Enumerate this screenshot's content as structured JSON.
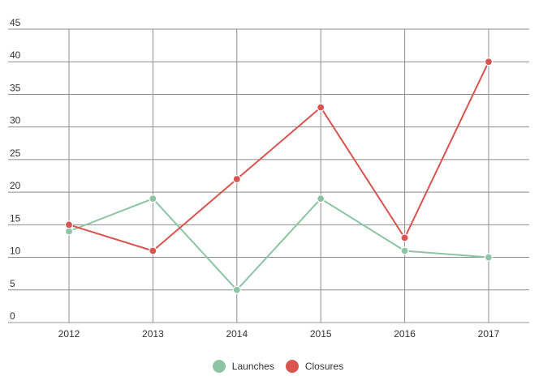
{
  "chart_data": {
    "type": "line",
    "categories": [
      "2012",
      "2013",
      "2014",
      "2015",
      "2016",
      "2017"
    ],
    "ylim": [
      0,
      45
    ],
    "yticks": [
      0,
      5,
      10,
      15,
      20,
      25,
      30,
      35,
      40,
      45
    ],
    "grid": true,
    "legend_position": "bottom",
    "series": [
      {
        "name": "Launches",
        "color": "#8cc4a4",
        "values": [
          14,
          19,
          5,
          19,
          11,
          10
        ]
      },
      {
        "name": "Closures",
        "color": "#d9534f",
        "values": [
          15,
          11,
          22,
          33,
          13,
          40
        ]
      }
    ]
  }
}
